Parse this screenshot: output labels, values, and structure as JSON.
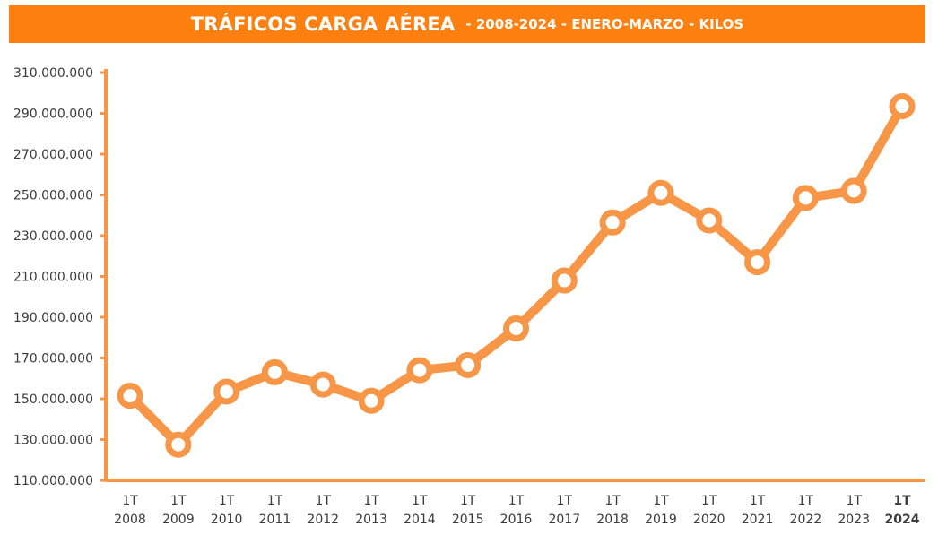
{
  "header": {
    "title": "TRÁFICOS CARGA AÉREA",
    "subtitle": "- 2008-2024 - ENERO-MARZO - KILOS"
  },
  "colors": {
    "accent": "#fd8011",
    "line": "#f79646",
    "axis": "#f79646",
    "marker_fill": "#ffffff",
    "text": "#3a3a3a"
  },
  "chart_data": {
    "type": "line",
    "title": "TRÁFICOS CARGA AÉREA - 2008-2024 - ENERO-MARZO - KILOS",
    "categories": [
      [
        "1T",
        "2008"
      ],
      [
        "1T",
        "2009"
      ],
      [
        "1T",
        "2010"
      ],
      [
        "1T",
        "2011"
      ],
      [
        "1T",
        "2012"
      ],
      [
        "1T",
        "2013"
      ],
      [
        "1T",
        "2014"
      ],
      [
        "1T",
        "2015"
      ],
      [
        "1T",
        "2016"
      ],
      [
        "1T",
        "2017"
      ],
      [
        "1T",
        "2018"
      ],
      [
        "1T",
        "2019"
      ],
      [
        "1T",
        "2020"
      ],
      [
        "1T",
        "2021"
      ],
      [
        "1T",
        "2022"
      ],
      [
        "1T",
        "2023"
      ],
      [
        "1T",
        "2024"
      ]
    ],
    "values": [
      151500000,
      127500000,
      153500000,
      163000000,
      157000000,
      149000000,
      164000000,
      166500000,
      184500000,
      208000000,
      236500000,
      251000000,
      237500000,
      217000000,
      248500000,
      252000000,
      293500000
    ],
    "ylim": [
      110000000,
      310000000
    ],
    "yticks": [
      110000000,
      130000000,
      150000000,
      170000000,
      190000000,
      210000000,
      230000000,
      250000000,
      270000000,
      290000000,
      310000000
    ],
    "ytick_labels": [
      "110.000.000",
      "130.000.000",
      "150.000.000",
      "170.000.000",
      "190.000.000",
      "210.000.000",
      "230.000.000",
      "250.000.000",
      "270.000.000",
      "290.000.000",
      "310.000.000"
    ],
    "grid": false,
    "legend": "none",
    "highlight_last_category": true
  }
}
